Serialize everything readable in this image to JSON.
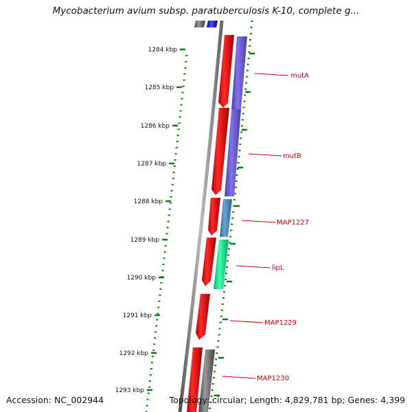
{
  "title": "Mycobacterium avium subsp. paratuberculosis K-10, complete g...",
  "footer": {
    "accession": "Accession: NC_002944",
    "topology": "Topology: circular; Length: 4,829,781 bp; Genes: 4,399"
  },
  "ruler": {
    "ticks": [
      "1284 kbp",
      "1285 kbp",
      "1286 kbp",
      "1287 kbp",
      "1288 kbp",
      "1289 kbp",
      "1290 kbp",
      "1291 kbp",
      "1292 kbp",
      "1293 kbp"
    ]
  },
  "genes": [
    {
      "name": "mutA",
      "color": "#6a5acd"
    },
    {
      "name": "mutB",
      "color": "#6a5acd"
    },
    {
      "name": "MAP1227",
      "color": "#4682b4"
    },
    {
      "name": "lipL",
      "color": "#00e68a"
    },
    {
      "name": "MAP1229",
      "color": "#ee0000"
    },
    {
      "name": "MAP1230",
      "color": "#666666"
    }
  ],
  "colors": {
    "forward_strand": "#ee0000",
    "tick_color": "#0a7a0a",
    "backbone": "#888888",
    "label_color": "#cc0000",
    "top_blue": "#1010ee"
  }
}
